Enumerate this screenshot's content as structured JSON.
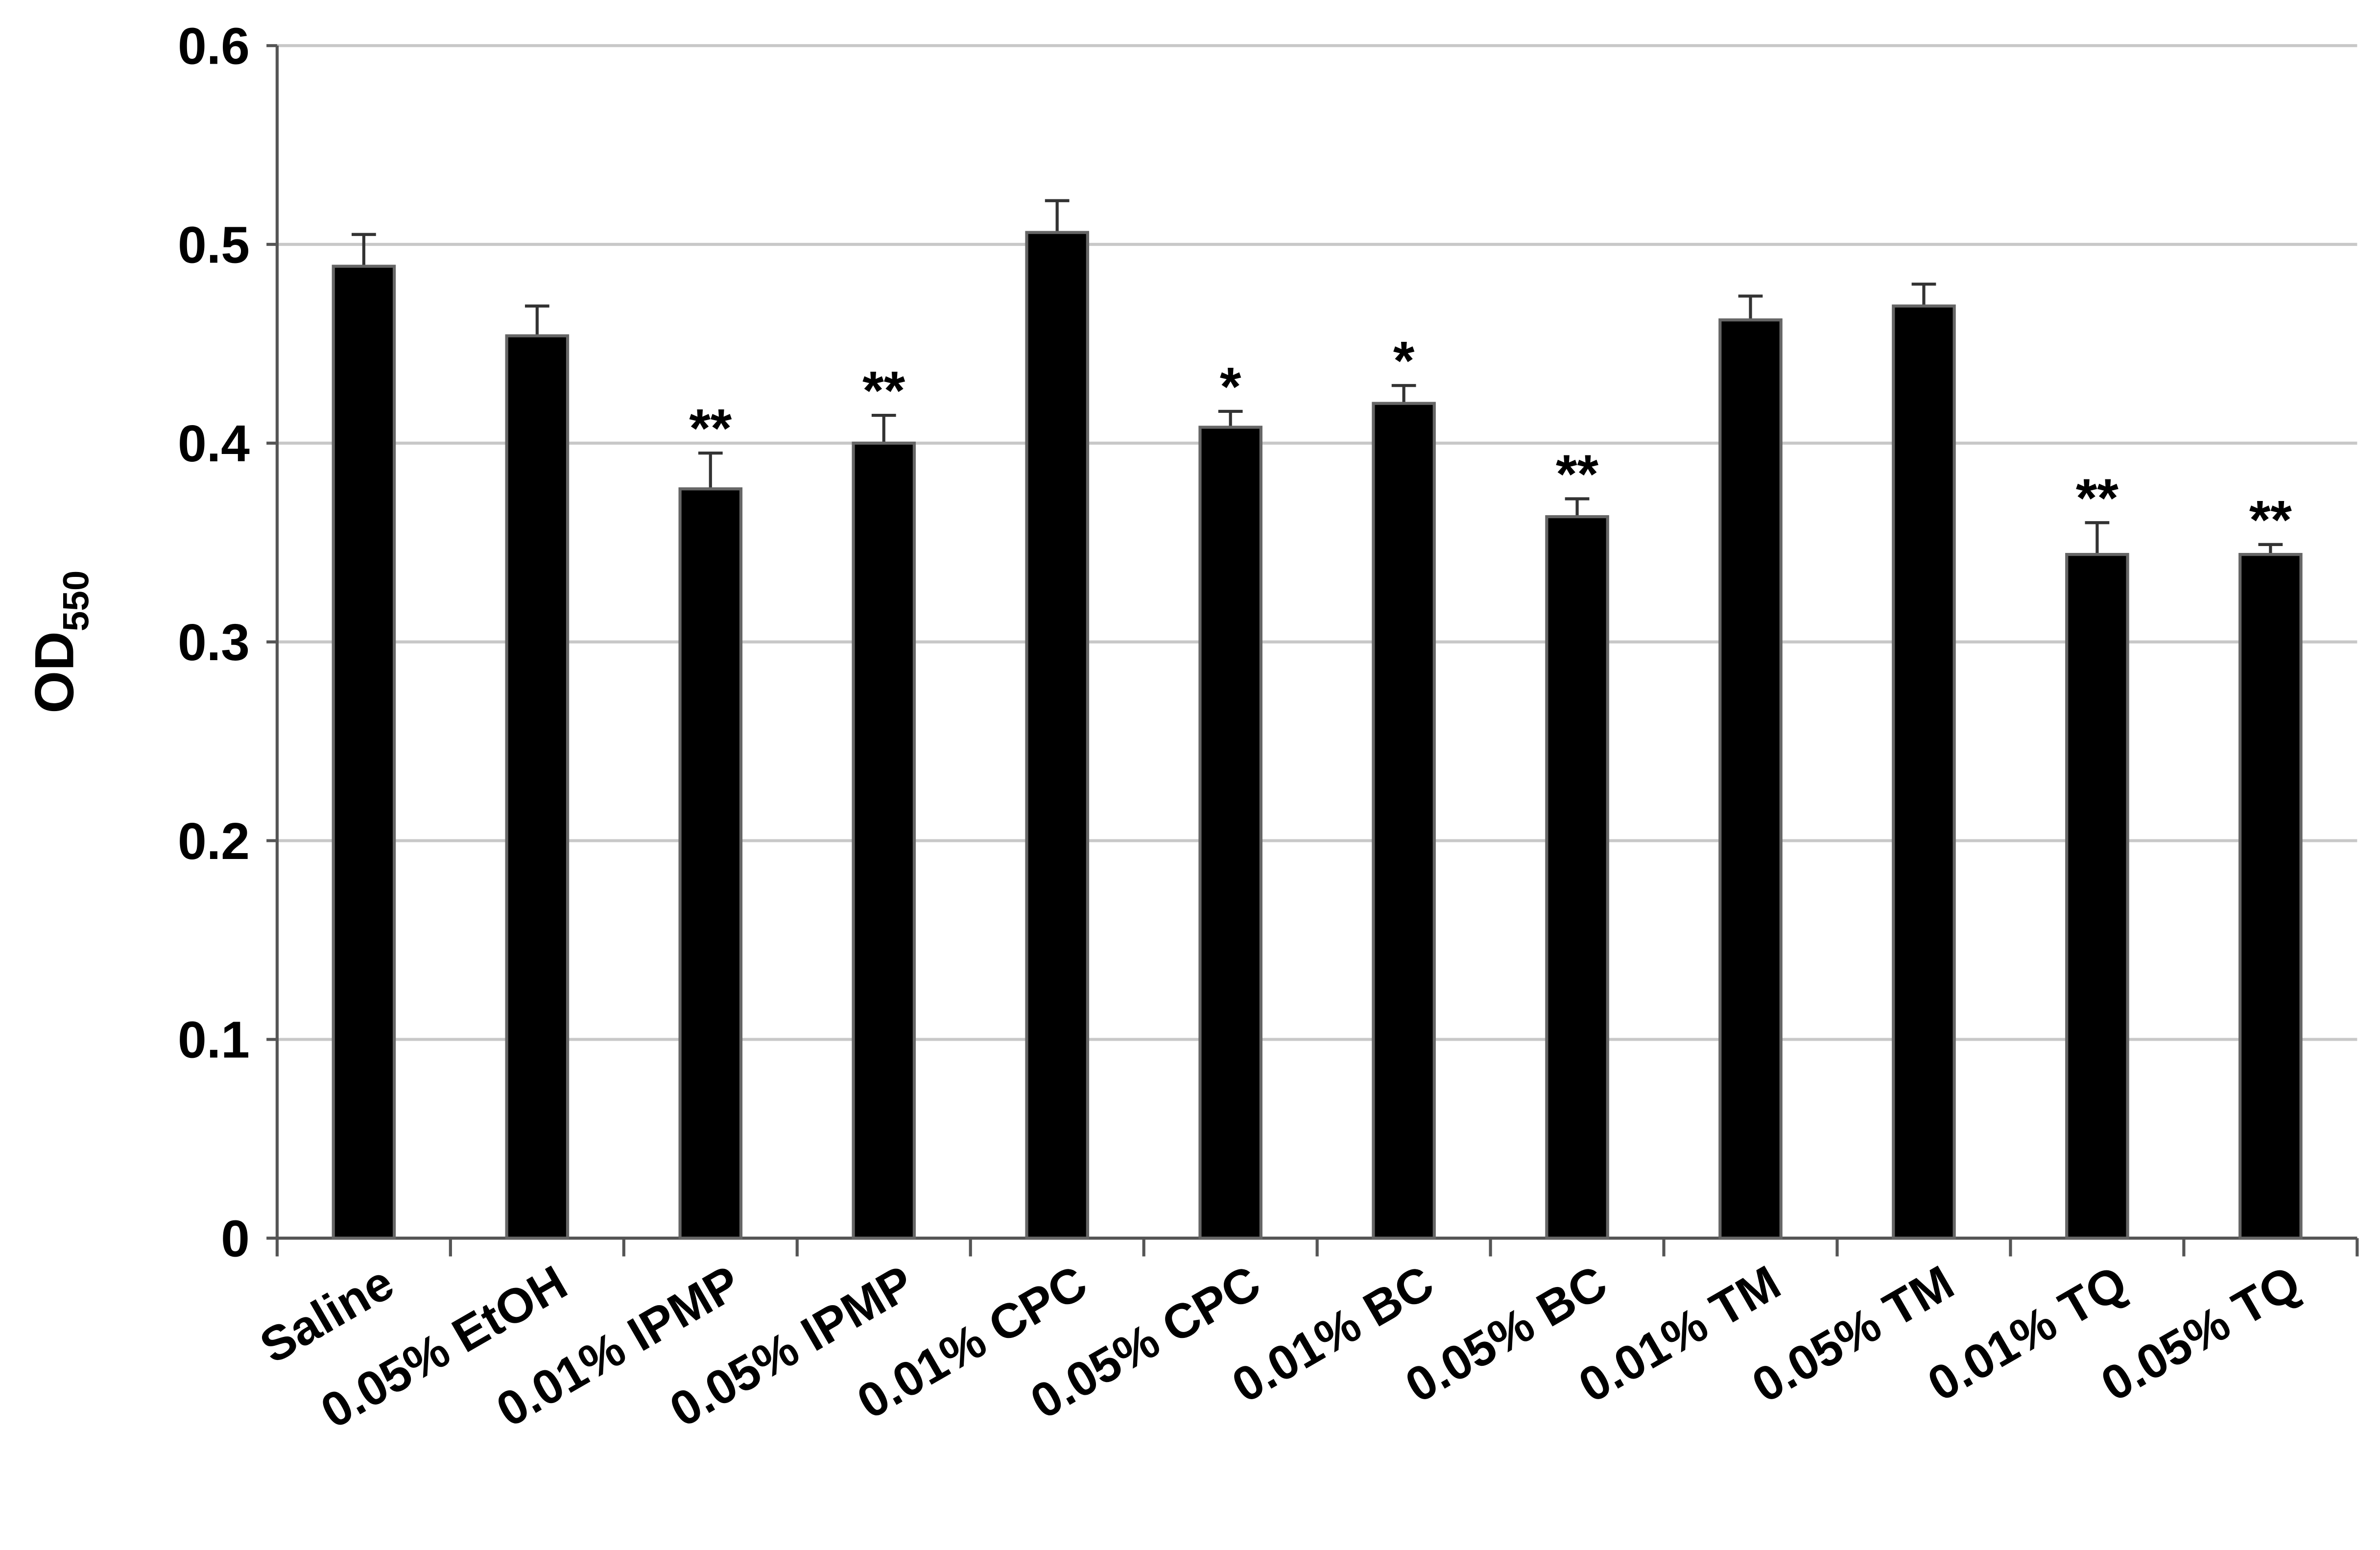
{
  "chart_data": {
    "type": "bar",
    "y_label": {
      "text": "OD",
      "subscript": "550"
    },
    "categories": [
      "Saline",
      "0.05% EtOH",
      "0.01% IPMP",
      "0.05% IPMP",
      "0.01% CPC",
      "0.05% CPC",
      "0.01% BC",
      "0.05% BC",
      "0.01% TM",
      "0.05% TM",
      "0.01% TQ",
      "0.05% TQ"
    ],
    "values": [
      0.489,
      0.454,
      0.377,
      0.4,
      0.506,
      0.408,
      0.42,
      0.363,
      0.462,
      0.469,
      0.344,
      0.344
    ],
    "errors": [
      0.016,
      0.015,
      0.018,
      0.014,
      0.016,
      0.008,
      0.009,
      0.009,
      0.012,
      0.011,
      0.016,
      0.005
    ],
    "annotations": [
      null,
      null,
      "**",
      "**",
      null,
      "*",
      "*",
      "**",
      null,
      null,
      "**",
      "**"
    ],
    "color": "#000000",
    "ylim": [
      0,
      0.6
    ],
    "yticks": [
      0,
      0.1,
      0.2,
      0.3,
      0.4,
      0.5,
      0.6
    ],
    "grid": true
  }
}
